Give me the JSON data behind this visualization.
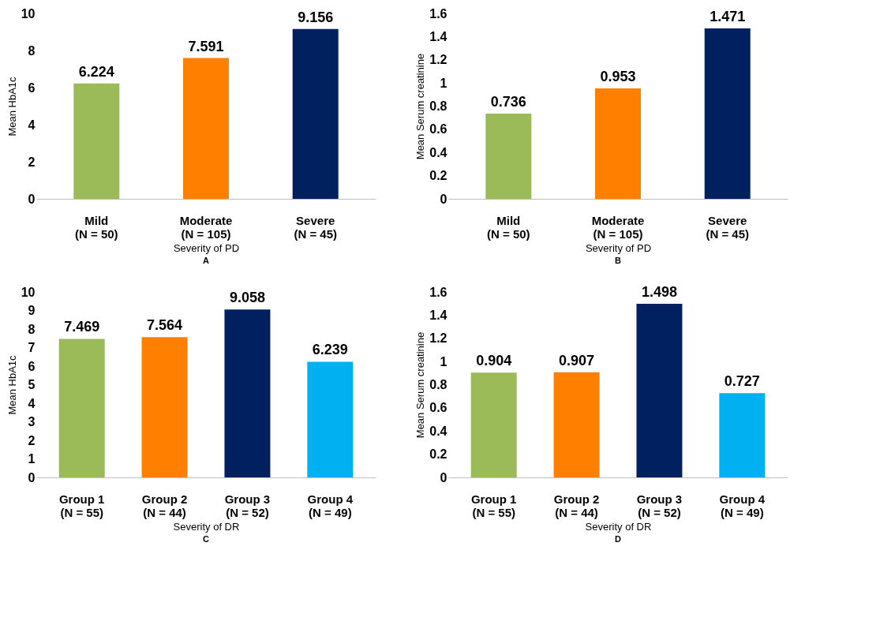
{
  "chart_data": [
    {
      "type": "bar",
      "categories": [
        "Mild\n(N = 50)",
        "Moderate\n(N = 105)",
        "Severe\n(N = 45)"
      ],
      "values": [
        6.224,
        7.591,
        9.156
      ],
      "colors": [
        "#9bbb59",
        "#ff7f00",
        "#002060"
      ],
      "ylim": [
        0,
        10
      ],
      "yticks": [
        0,
        2,
        4,
        6,
        8,
        10
      ],
      "xlabel": "Severity of PD",
      "ylabel": "Mean HbA1c",
      "data_labels": true,
      "grid": false,
      "annotations": [
        "A"
      ]
    },
    {
      "type": "bar",
      "categories": [
        "Mild\n(N = 50)",
        "Moderate\n(N = 105)",
        "Severe\n(N = 45)"
      ],
      "values": [
        0.736,
        0.953,
        1.471
      ],
      "colors": [
        "#9bbb59",
        "#ff7f00",
        "#002060"
      ],
      "ylim": [
        0,
        1.6
      ],
      "yticks": [
        0,
        0.2,
        0.4,
        0.6,
        0.8,
        1,
        1.2,
        1.4,
        1.6
      ],
      "xlabel": "Severity of PD",
      "ylabel": "Mean Serum creatinine",
      "data_labels": true,
      "grid": false,
      "annotations": [
        "B"
      ]
    },
    {
      "type": "bar",
      "categories": [
        "Group 1\n(N = 55)",
        "Group 2\n(N = 44)",
        "Group 3\n(N = 52)",
        "Group 4\n(N = 49)"
      ],
      "values": [
        7.469,
        7.564,
        9.058,
        6.239
      ],
      "colors": [
        "#9bbb59",
        "#ff7f00",
        "#002060",
        "#00b0f0"
      ],
      "ylim": [
        0,
        10
      ],
      "yticks": [
        0,
        1,
        2,
        3,
        4,
        5,
        6,
        7,
        8,
        9,
        10
      ],
      "xlabel": "Severity of DR",
      "ylabel": "Mean HbA1c",
      "data_labels": true,
      "grid": false,
      "annotations": [
        "C"
      ]
    },
    {
      "type": "bar",
      "categories": [
        "Group 1\n(N = 55)",
        "Group 2\n(N = 44)",
        "Group 3\n(N = 52)",
        "Group 4\n(N = 49)"
      ],
      "values": [
        0.904,
        0.907,
        1.498,
        0.727
      ],
      "colors": [
        "#9bbb59",
        "#ff7f00",
        "#002060",
        "#00b0f0"
      ],
      "ylim": [
        0,
        1.6
      ],
      "yticks": [
        0,
        0.2,
        0.4,
        0.6,
        0.8,
        1,
        1.2,
        1.4,
        1.6
      ],
      "xlabel": "Severity of DR",
      "ylabel": "Mean Serum creatinine",
      "data_labels": true,
      "grid": false,
      "annotations": [
        "D"
      ]
    }
  ]
}
